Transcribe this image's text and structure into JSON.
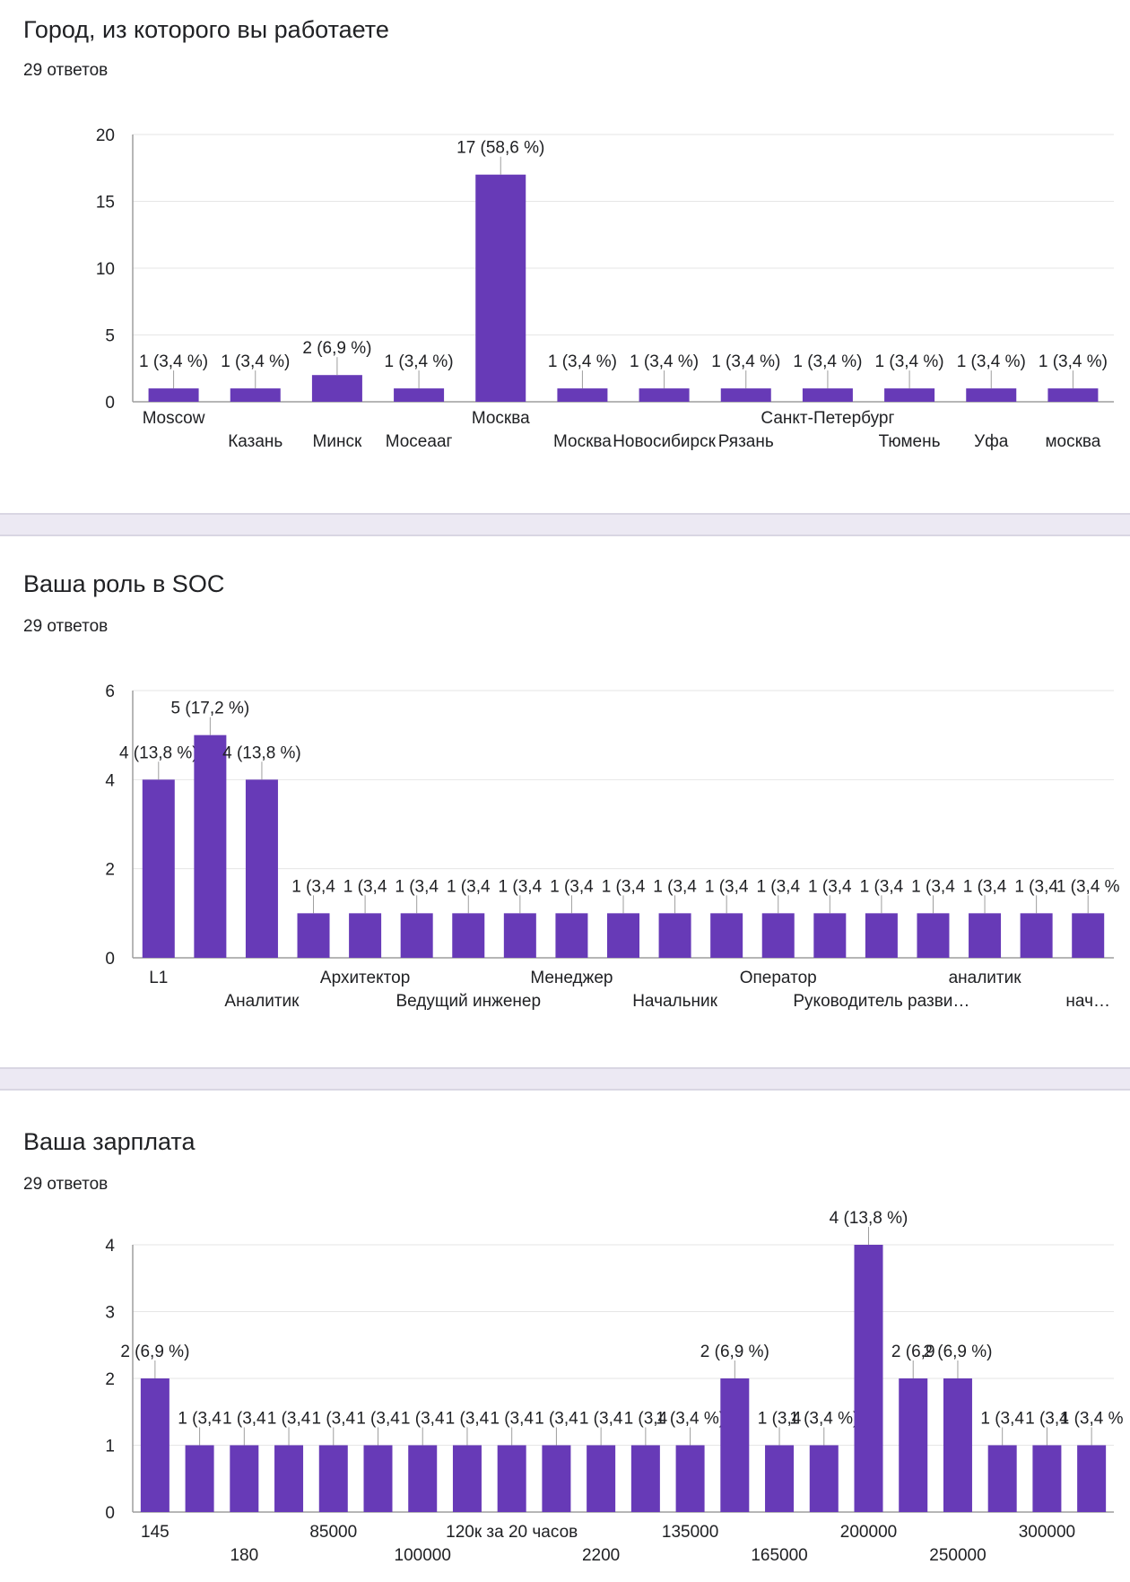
{
  "colors": {
    "bar": "#673ab7",
    "grid": "#e6e6e6",
    "axis": "#9e9e9e"
  },
  "charts": [
    {
      "title": "Город, из которого вы работаете",
      "responses": "29 ответов",
      "chart_data": {
        "type": "bar",
        "categories": [
          "Moscow",
          "Казань",
          "Минск",
          "Мосеааг",
          "Москва",
          "Москва",
          "Новосибирск",
          "Рязань",
          "Санкт-Петербург",
          "Тюмень",
          "Уфа",
          "москва"
        ],
        "values": [
          1,
          1,
          2,
          1,
          17,
          1,
          1,
          1,
          1,
          1,
          1,
          1
        ],
        "data_labels": [
          "1 (3,4 %)",
          "1 (3,4 %)",
          "2 (6,9 %)",
          "1 (3,4 %)",
          "17 (58,6 %)",
          "1 (3,4 %)",
          "1 (3,4 %)",
          "1 (3,4 %)",
          "1 (3,4 %)",
          "1 (3,4 %)",
          "1 (3,4 %)",
          "1 (3,4 %)"
        ],
        "ylim": [
          0,
          20
        ],
        "yticks": [
          0,
          5,
          10,
          15,
          20
        ],
        "grid": true
      }
    },
    {
      "title": "Ваша роль в SOC",
      "responses": "29 ответов",
      "chart_data": {
        "type": "bar",
        "categories": [
          "L1",
          "",
          "Аналитик",
          "",
          "Архитектор",
          "",
          "Ведущий инженер",
          "",
          "Менеджер",
          "",
          "Начальник",
          "",
          "Оператор",
          "",
          "Руководитель разви…",
          "",
          "аналитик",
          "",
          "нач…"
        ],
        "values": [
          4,
          5,
          4,
          1,
          1,
          1,
          1,
          1,
          1,
          1,
          1,
          1,
          1,
          1,
          1,
          1,
          1,
          1,
          1
        ],
        "data_labels": [
          "4 (13,8 %)",
          "5 (17,2 %)",
          "4 (13,8 %)",
          "1 (3,4",
          "1 (3,4",
          "1 (3,4",
          "1 (3,4",
          "1 (3,4",
          "1 (3,4",
          "1 (3,4",
          "1 (3,4",
          "1 (3,4",
          "1 (3,4",
          "1 (3,4",
          "1 (3,4",
          "1 (3,4",
          "1 (3,4",
          "1 (3,4",
          "1 (3,4 %"
        ],
        "ylim": [
          0,
          6
        ],
        "yticks": [
          0,
          2,
          4,
          6
        ],
        "grid": true
      }
    },
    {
      "title": "Ваша зарплата",
      "responses": "29 ответов",
      "chart_data": {
        "type": "bar",
        "categories": [
          "145",
          "",
          "180",
          "",
          "85000",
          "",
          "100000",
          "",
          "120к за 20 часов",
          "",
          "2200",
          "",
          "135000",
          "",
          "165000",
          "",
          "200000",
          "",
          "250000",
          "",
          "300000",
          ""
        ],
        "values": [
          2,
          1,
          1,
          1,
          1,
          1,
          1,
          1,
          1,
          1,
          1,
          1,
          1,
          2,
          1,
          1,
          4,
          2,
          2,
          1,
          1,
          1
        ],
        "data_labels": [
          "2 (6,9 %)",
          "1 (3,4",
          "1 (3,4",
          "1 (3,4",
          "1 (3,4",
          "1 (3,4",
          "1 (3,4",
          "1 (3,4",
          "1 (3,4",
          "1 (3,4",
          "1 (3,4",
          "1 (3,4",
          "1 (3,4 %)",
          "2 (6,9 %)",
          "1 (3,4",
          "1 (3,4 %)",
          "4 (13,8 %)",
          "2 (6,9",
          "2 (6,9 %)",
          "1 (3,4",
          "1 (3,4",
          "1 (3,4 %"
        ],
        "ylim": [
          0,
          4
        ],
        "yticks": [
          0,
          1,
          2,
          3,
          4
        ],
        "grid": true
      }
    }
  ]
}
